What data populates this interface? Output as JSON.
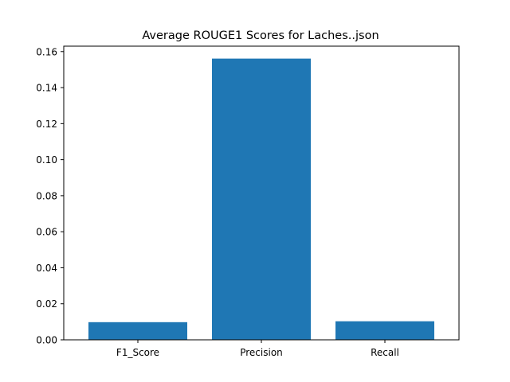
{
  "chart_data": {
    "type": "bar",
    "title": "Average ROUGE1 Scores for Laches..json",
    "xlabel": "",
    "ylabel": "",
    "categories": [
      "F1_Score",
      "Precision",
      "Recall"
    ],
    "values": [
      0.0098,
      0.1561,
      0.0103
    ],
    "ylim": [
      0,
      0.163
    ],
    "yticks": [
      0.0,
      0.02,
      0.04,
      0.06,
      0.08,
      0.1,
      0.12,
      0.14,
      0.16
    ],
    "ytick_labels": [
      "0.00",
      "0.02",
      "0.04",
      "0.06",
      "0.08",
      "0.10",
      "0.12",
      "0.14",
      "0.16"
    ],
    "bar_color": "#1f77b4",
    "grid": false,
    "legend": "none"
  }
}
